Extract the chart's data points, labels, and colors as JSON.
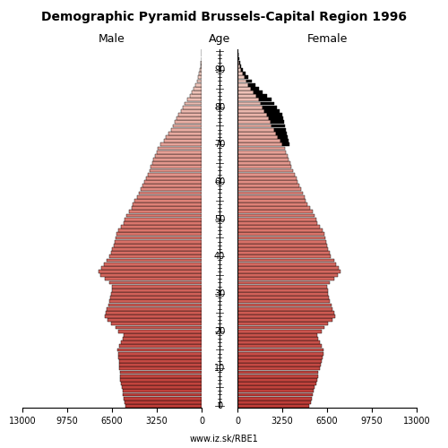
{
  "title": "Demographic Pyramid Brussels-Capital Region 1996",
  "label_male": "Male",
  "label_female": "Female",
  "label_age": "Age",
  "footer": "www.iz.sk/RBE1",
  "xlim": 13000,
  "bar_color_young": "#C8514A",
  "bar_color_old": "#D4897E",
  "bar_color_very_old": "#E8B8B0",
  "bar_color_black": "#000000",
  "bar_edge_color": "#000000",
  "male": [
    5500,
    5600,
    5650,
    5700,
    5750,
    5800,
    5850,
    5900,
    5920,
    5940,
    5960,
    5980,
    6000,
    6020,
    6050,
    6100,
    5980,
    5850,
    5700,
    5650,
    6050,
    6250,
    6550,
    6800,
    7000,
    6950,
    6870,
    6780,
    6680,
    6600,
    6560,
    6520,
    6480,
    6700,
    7050,
    7350,
    7450,
    7280,
    7080,
    6880,
    6680,
    6580,
    6480,
    6380,
    6320,
    6270,
    6170,
    6070,
    5870,
    5680,
    5570,
    5460,
    5280,
    5080,
    4980,
    4870,
    4680,
    4560,
    4450,
    4280,
    4160,
    4060,
    3880,
    3780,
    3680,
    3580,
    3480,
    3380,
    3270,
    3160,
    2960,
    2760,
    2570,
    2380,
    2180,
    2050,
    1950,
    1800,
    1660,
    1500,
    1360,
    1210,
    1050,
    870,
    720,
    570,
    430,
    330,
    230,
    165,
    110,
    72,
    45,
    26,
    13,
    6
  ],
  "female": [
    5200,
    5300,
    5380,
    5460,
    5540,
    5620,
    5700,
    5780,
    5820,
    5870,
    5960,
    6040,
    6120,
    6160,
    6210,
    6260,
    6110,
    5960,
    5820,
    5770,
    6080,
    6280,
    6570,
    6860,
    7060,
    7000,
    6900,
    6800,
    6700,
    6640,
    6590,
    6540,
    6490,
    6700,
    7000,
    7290,
    7480,
    7340,
    7180,
    6990,
    6790,
    6680,
    6590,
    6490,
    6430,
    6380,
    6280,
    6170,
    5990,
    5800,
    5690,
    5590,
    5430,
    5240,
    5090,
    4970,
    4860,
    4760,
    4620,
    4480,
    4370,
    4270,
    4130,
    4030,
    3930,
    3830,
    3730,
    3640,
    3530,
    3430,
    3280,
    3090,
    2940,
    2790,
    2640,
    2490,
    2380,
    2270,
    2130,
    1980,
    1840,
    1690,
    1540,
    1340,
    1140,
    990,
    800,
    640,
    490,
    370,
    260,
    175,
    105,
    62,
    33,
    16
  ],
  "female_extra": [
    0,
    0,
    0,
    0,
    0,
    0,
    0,
    0,
    0,
    0,
    0,
    0,
    0,
    0,
    0,
    0,
    0,
    0,
    0,
    0,
    0,
    0,
    0,
    0,
    0,
    0,
    0,
    0,
    0,
    0,
    0,
    0,
    0,
    0,
    0,
    0,
    0,
    0,
    0,
    0,
    0,
    0,
    0,
    0,
    0,
    0,
    0,
    0,
    0,
    0,
    0,
    0,
    0,
    0,
    0,
    0,
    0,
    0,
    0,
    0,
    0,
    0,
    0,
    0,
    0,
    0,
    0,
    0,
    0,
    0,
    500,
    600,
    700,
    800,
    900,
    950,
    1000,
    1050,
    1100,
    1050,
    1000,
    950,
    900,
    800,
    700,
    600,
    500,
    400,
    300,
    220,
    160,
    110,
    70,
    40,
    20,
    10
  ]
}
